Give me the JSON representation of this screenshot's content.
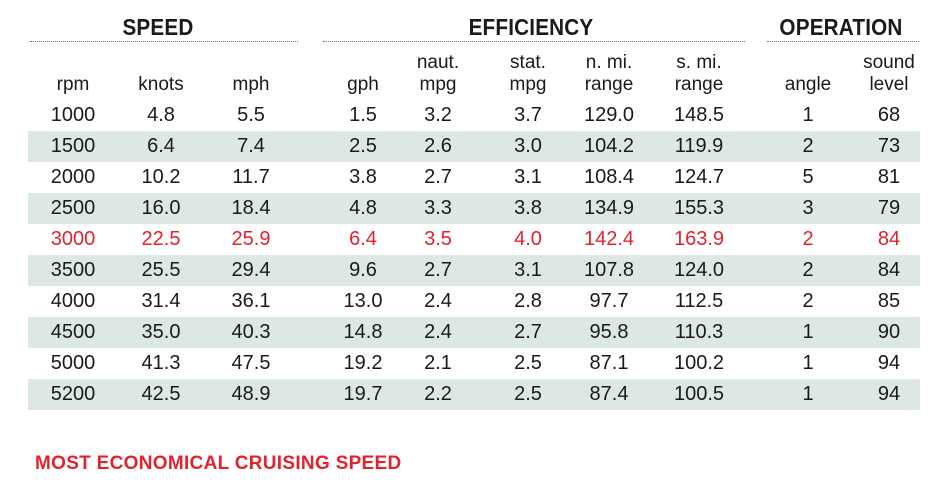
{
  "groups": {
    "speed": "SPEED",
    "efficiency": "EFFICIENCY",
    "operation": "OPERATION"
  },
  "columns": [
    {
      "key": "rpm",
      "line1": "",
      "line2": "rpm"
    },
    {
      "key": "knots",
      "line1": "",
      "line2": "knots"
    },
    {
      "key": "mph",
      "line1": "",
      "line2": "mph"
    },
    {
      "key": "gph",
      "line1": "",
      "line2": "gph"
    },
    {
      "key": "naut_mpg",
      "line1": "naut.",
      "line2": "mpg"
    },
    {
      "key": "stat_mpg",
      "line1": "stat.",
      "line2": "mpg"
    },
    {
      "key": "n_mi_range",
      "line1": "n. mi.",
      "line2": "range"
    },
    {
      "key": "s_mi_range",
      "line1": "s. mi.",
      "line2": "range"
    },
    {
      "key": "angle",
      "line1": "",
      "line2": "angle"
    },
    {
      "key": "sound_level",
      "line1": "sound",
      "line2": "level"
    }
  ],
  "rows": [
    {
      "rpm": "1000",
      "knots": "4.8",
      "mph": "5.5",
      "gph": "1.5",
      "naut_mpg": "3.2",
      "stat_mpg": "3.7",
      "n_mi_range": "129.0",
      "s_mi_range": "148.5",
      "angle": "1",
      "sound_level": "68"
    },
    {
      "rpm": "1500",
      "knots": "6.4",
      "mph": "7.4",
      "gph": "2.5",
      "naut_mpg": "2.6",
      "stat_mpg": "3.0",
      "n_mi_range": "104.2",
      "s_mi_range": "119.9",
      "angle": "2",
      "sound_level": "73"
    },
    {
      "rpm": "2000",
      "knots": "10.2",
      "mph": "11.7",
      "gph": "3.8",
      "naut_mpg": "2.7",
      "stat_mpg": "3.1",
      "n_mi_range": "108.4",
      "s_mi_range": "124.7",
      "angle": "5",
      "sound_level": "81"
    },
    {
      "rpm": "2500",
      "knots": "16.0",
      "mph": "18.4",
      "gph": "4.8",
      "naut_mpg": "3.3",
      "stat_mpg": "3.8",
      "n_mi_range": "134.9",
      "s_mi_range": "155.3",
      "angle": "3",
      "sound_level": "79"
    },
    {
      "rpm": "3000",
      "knots": "22.5",
      "mph": "25.9",
      "gph": "6.4",
      "naut_mpg": "3.5",
      "stat_mpg": "4.0",
      "n_mi_range": "142.4",
      "s_mi_range": "163.9",
      "angle": "2",
      "sound_level": "84",
      "highlight": true
    },
    {
      "rpm": "3500",
      "knots": "25.5",
      "mph": "29.4",
      "gph": "9.6",
      "naut_mpg": "2.7",
      "stat_mpg": "3.1",
      "n_mi_range": "107.8",
      "s_mi_range": "124.0",
      "angle": "2",
      "sound_level": "84"
    },
    {
      "rpm": "4000",
      "knots": "31.4",
      "mph": "36.1",
      "gph": "13.0",
      "naut_mpg": "2.4",
      "stat_mpg": "2.8",
      "n_mi_range": "97.7",
      "s_mi_range": "112.5",
      "angle": "2",
      "sound_level": "85"
    },
    {
      "rpm": "4500",
      "knots": "35.0",
      "mph": "40.3",
      "gph": "14.8",
      "naut_mpg": "2.4",
      "stat_mpg": "2.7",
      "n_mi_range": "95.8",
      "s_mi_range": "110.3",
      "angle": "1",
      "sound_level": "90"
    },
    {
      "rpm": "5000",
      "knots": "41.3",
      "mph": "47.5",
      "gph": "19.2",
      "naut_mpg": "2.1",
      "stat_mpg": "2.5",
      "n_mi_range": "87.1",
      "s_mi_range": "100.2",
      "angle": "1",
      "sound_level": "94"
    },
    {
      "rpm": "5200",
      "knots": "42.5",
      "mph": "48.9",
      "gph": "19.7",
      "naut_mpg": "2.2",
      "stat_mpg": "2.5",
      "n_mi_range": "87.4",
      "s_mi_range": "100.5",
      "angle": "1",
      "sound_level": "94"
    }
  ],
  "footnote": "MOST ECONOMICAL CRUISING SPEED",
  "colors": {
    "highlight": "#e0242e",
    "shade": "#dde7e4"
  }
}
